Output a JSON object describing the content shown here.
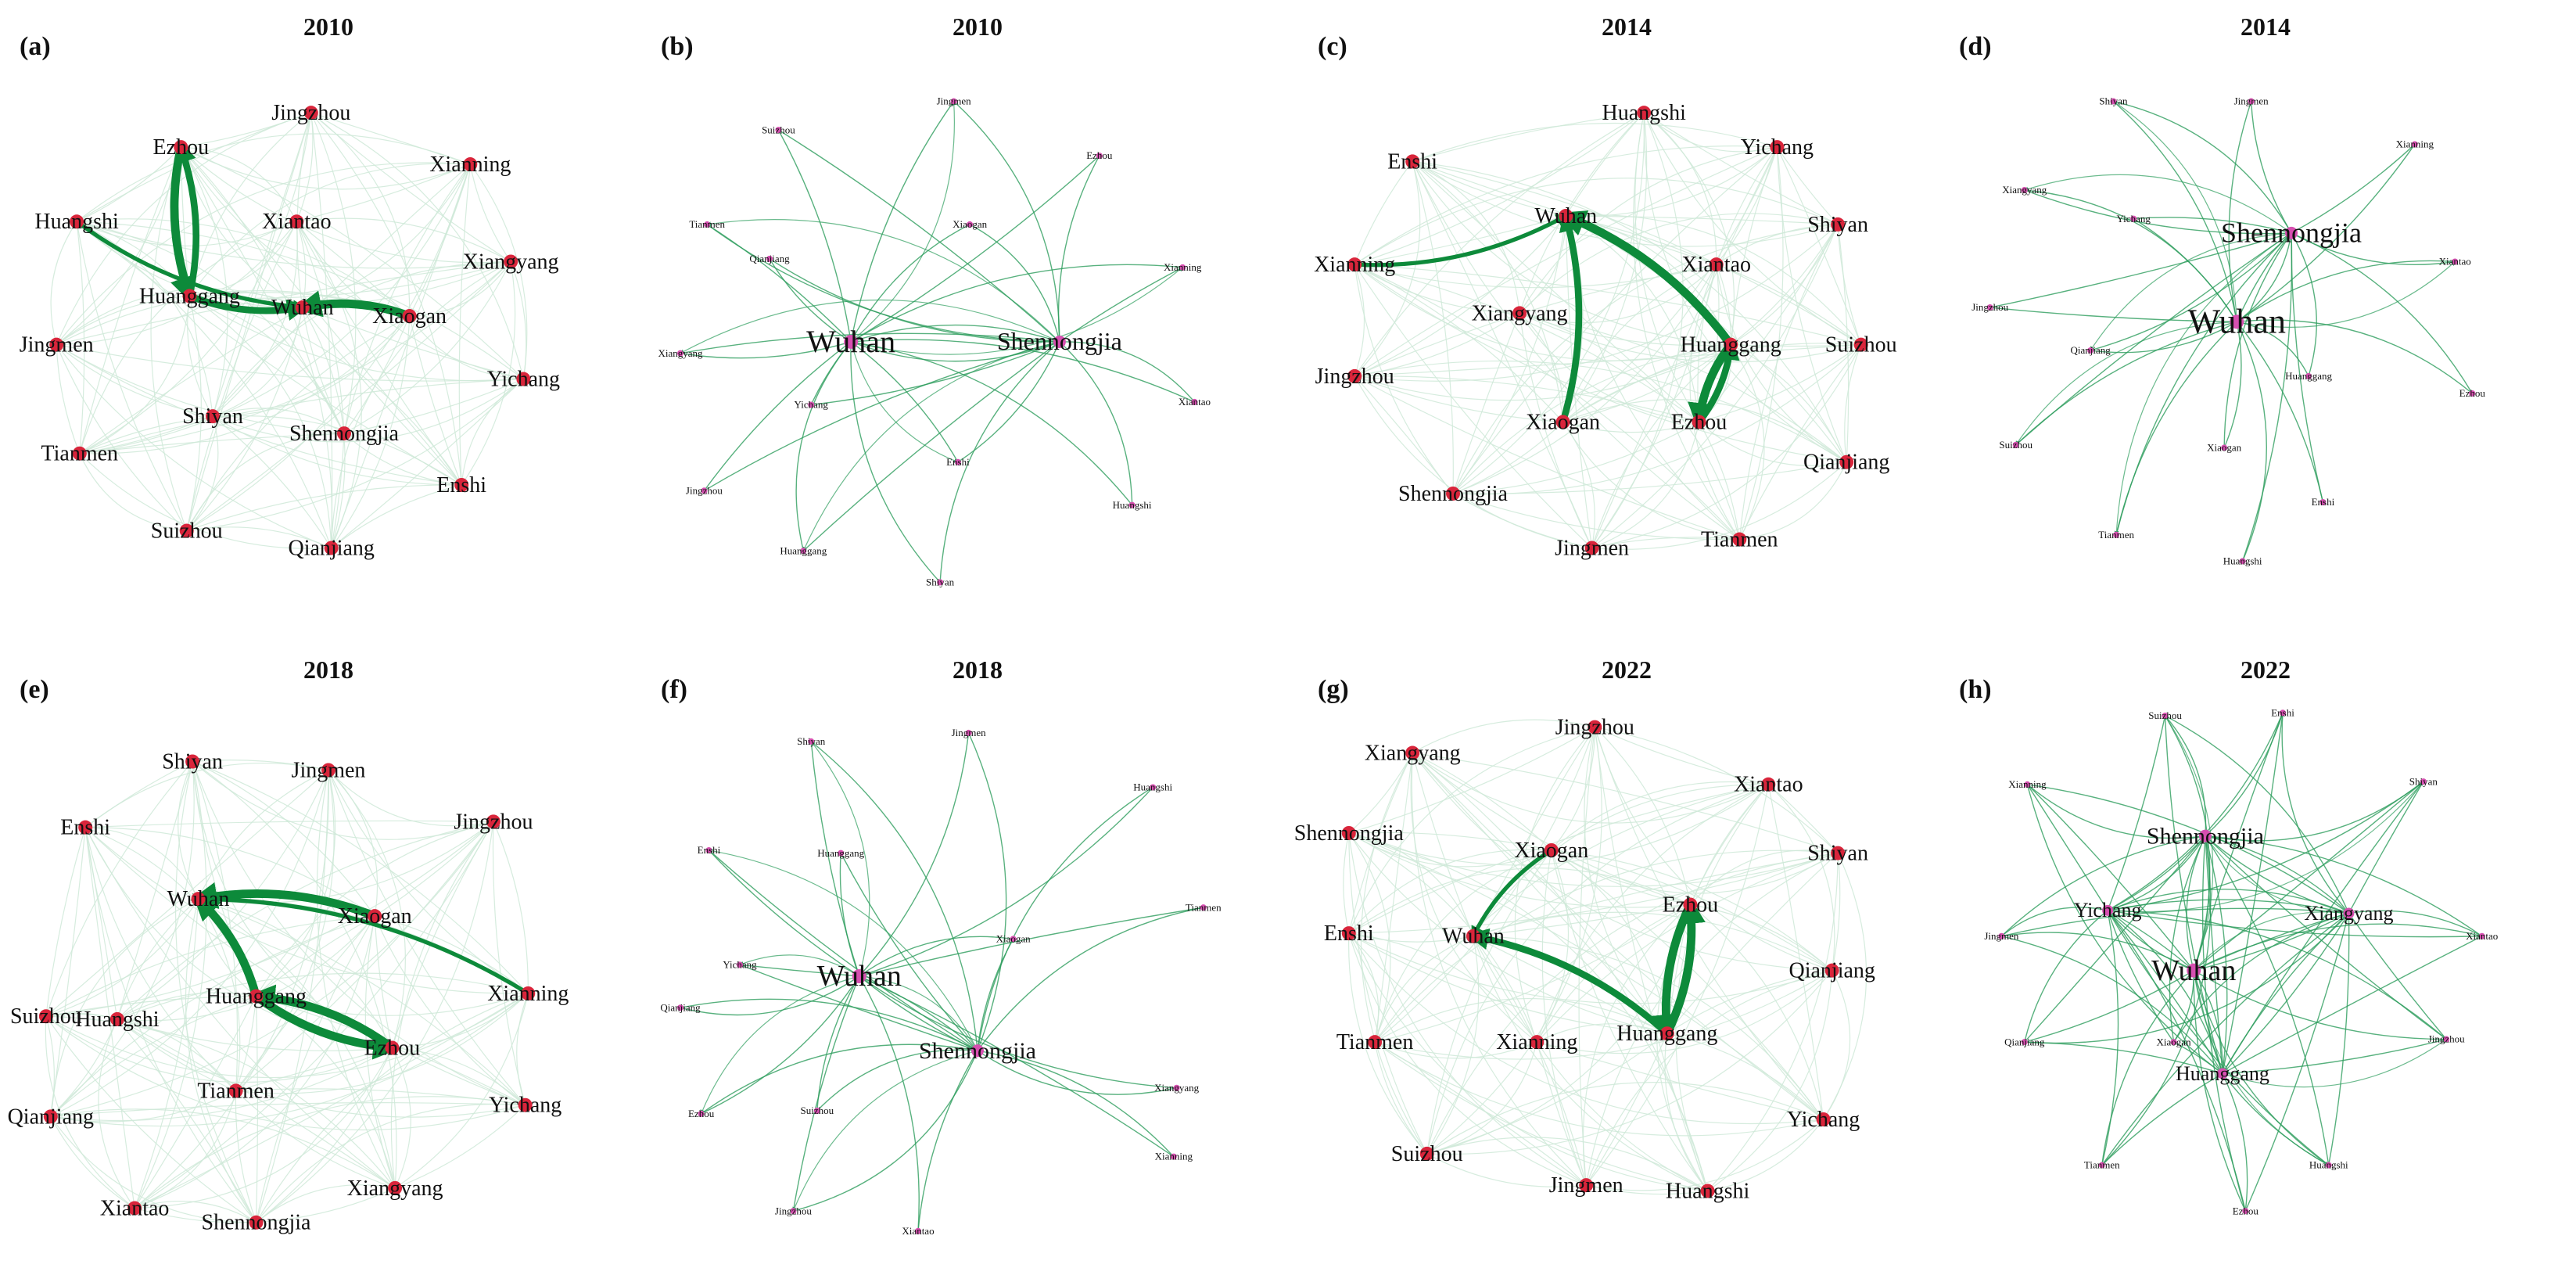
{
  "colors": {
    "web_edge": "#cfe9d8",
    "edge": "#2e9e5e",
    "strong_edge": "#0d8a3a",
    "node_red": "#d9253b",
    "node_pink": "#d64fb0"
  },
  "panels": [
    {
      "letter": "(a)",
      "title": "2010",
      "style": "circle",
      "nodes": [
        "Jingzhou",
        "Xianning",
        "Xiangyang",
        "Yichang",
        "Enshi",
        "Qianjiang",
        "Suizhou",
        "Tianmen",
        "Jingmen",
        "Huangshi",
        "Ezhou",
        "Xiantao",
        "Huanggang",
        "Wuhan",
        "Xiaogan",
        "Shiyan",
        "Shennongjia"
      ],
      "strong_edges": [
        {
          "from": "Ezhou",
          "to": "Huanggang",
          "weight": 4
        },
        {
          "from": "Huanggang",
          "to": "Ezhou",
          "weight": 3
        },
        {
          "from": "Huanggang",
          "to": "Wuhan",
          "weight": 3
        },
        {
          "from": "Xiaogan",
          "to": "Wuhan",
          "weight": 4
        },
        {
          "from": "Huangshi",
          "to": "Wuhan",
          "weight": 1.5
        }
      ]
    },
    {
      "letter": "(b)",
      "title": "2010",
      "style": "spread",
      "nodes": [
        "Jingmen",
        "Suizhou",
        "Ezhou",
        "Tianmen",
        "Xiaogan",
        "Qianjiang",
        "Xianning",
        "Wuhan",
        "Shennongjia",
        "Xiangyang",
        "Yichang",
        "Xiantao",
        "Enshi",
        "Jingzhou",
        "Huangshi",
        "Huanggang",
        "Shiyan"
      ],
      "hubs": [
        "Wuhan",
        "Shennongjia"
      ]
    },
    {
      "letter": "(c)",
      "title": "2014",
      "style": "circle",
      "nodes": [
        "Huangshi",
        "Yichang",
        "Enshi",
        "Shiyan",
        "Wuhan",
        "Xianning",
        "Xiantao",
        "Xiangyang",
        "Suizhou",
        "Huanggang",
        "Jingzhou",
        "Xiaogan",
        "Ezhou",
        "Qianjiang",
        "Shennongjia",
        "Tianmen",
        "Jingmen"
      ],
      "strong_edges": [
        {
          "from": "Huanggang",
          "to": "Wuhan",
          "weight": 4
        },
        {
          "from": "Huanggang",
          "to": "Ezhou",
          "weight": 4
        },
        {
          "from": "Ezhou",
          "to": "Huanggang",
          "weight": 3
        },
        {
          "from": "Xiaogan",
          "to": "Wuhan",
          "weight": 3
        },
        {
          "from": "Xianning",
          "to": "Wuhan",
          "weight": 1.5
        }
      ]
    },
    {
      "letter": "(d)",
      "title": "2014",
      "style": "spread",
      "nodes": [
        "Shiyan",
        "Jingmen",
        "Xianning",
        "Xiangyang",
        "Yichang",
        "Shennongjia",
        "Xiantao",
        "Jingzhou",
        "Wuhan",
        "Qianjiang",
        "Huanggang",
        "Ezhou",
        "Suizhou",
        "Xiaogan",
        "Enshi",
        "Tianmen",
        "Huangshi"
      ],
      "hubs": [
        "Wuhan",
        "Shennongjia"
      ]
    },
    {
      "letter": "(e)",
      "title": "2018",
      "style": "circle",
      "nodes": [
        "Shiyan",
        "Jingmen",
        "Enshi",
        "Jingzhou",
        "Wuhan",
        "Xiaogan",
        "Suizhou",
        "Xianning",
        "Huanggang",
        "Huangshi",
        "Ezhou",
        "Qianjiang",
        "Yichang",
        "Tianmen",
        "Xiangyang",
        "Xiantao",
        "Shennongjia"
      ],
      "strong_edges": [
        {
          "from": "Xiaogan",
          "to": "Wuhan",
          "weight": 4
        },
        {
          "from": "Huanggang",
          "to": "Wuhan",
          "weight": 4
        },
        {
          "from": "Huanggang",
          "to": "Ezhou",
          "weight": 4
        },
        {
          "from": "Ezhou",
          "to": "Huanggang",
          "weight": 4
        },
        {
          "from": "Xianning",
          "to": "Wuhan",
          "weight": 1.5
        }
      ]
    },
    {
      "letter": "(f)",
      "title": "2018",
      "style": "spread",
      "nodes": [
        "Shiyan",
        "Jingmen",
        "Huangshi",
        "Enshi",
        "Huanggang",
        "Tianmen",
        "Yichang",
        "Xiaogan",
        "Qianjiang",
        "Wuhan",
        "Xiangyang",
        "Shennongjia",
        "Ezhou",
        "Suizhou",
        "Xianning",
        "Jingzhou",
        "Xiantao"
      ],
      "hubs": [
        "Wuhan",
        "Shennongjia"
      ]
    },
    {
      "letter": "(g)",
      "title": "2022",
      "style": "circle",
      "nodes": [
        "Jingzhou",
        "Xiangyang",
        "Xiantao",
        "Shennongjia",
        "Shiyan",
        "Xiaogan",
        "Ezhou",
        "Enshi",
        "Wuhan",
        "Qianjiang",
        "Tianmen",
        "Xianning",
        "Huanggang",
        "Yichang",
        "Suizhou",
        "Jingmen",
        "Huangshi"
      ],
      "strong_edges": [
        {
          "from": "Ezhou",
          "to": "Huanggang",
          "weight": 4
        },
        {
          "from": "Huanggang",
          "to": "Ezhou",
          "weight": 4
        },
        {
          "from": "Huanggang",
          "to": "Wuhan",
          "weight": 3
        },
        {
          "from": "Xiaogan",
          "to": "Wuhan",
          "weight": 1.5
        }
      ]
    },
    {
      "letter": "(h)",
      "title": "2022",
      "style": "spread",
      "nodes": [
        "Suizhou",
        "Enshi",
        "Xianning",
        "Shiyan",
        "Shennongjia",
        "Yichang",
        "Xiangyang",
        "Jingmen",
        "Xiantao",
        "Wuhan",
        "Qianjiang",
        "Xiaogan",
        "Jingzhou",
        "Huanggang",
        "Tianmen",
        "Huangshi",
        "Ezhou"
      ],
      "hubs": [
        "Wuhan",
        "Shennongjia",
        "Huanggang",
        "Yichang",
        "Xiangyang"
      ]
    }
  ]
}
